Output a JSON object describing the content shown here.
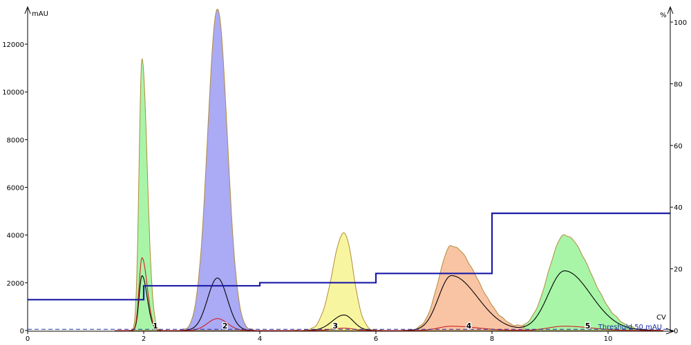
{
  "chart_data": {
    "type": "area",
    "xlabel": "CV",
    "ylabel_left": "mAU",
    "ylabel_right": "%",
    "xlim": [
      0,
      11.07
    ],
    "ylim_left": [
      0,
      13600
    ],
    "ylim_right": [
      0,
      100
    ],
    "x_ticks": [
      "0",
      "2",
      "4",
      "6",
      "8",
      "10"
    ],
    "y_ticks_left": [
      "0",
      "2000",
      "4000",
      "6000",
      "8000",
      "10000",
      "12000"
    ],
    "y_ticks_right": [
      "0",
      "20",
      "40",
      "60",
      "80",
      "100"
    ],
    "grid": false,
    "threshold": {
      "label": "Threshold 50 mAU",
      "value": 50
    },
    "peaks": [
      {
        "center": 1.97,
        "sigma_left": 0.05,
        "sigma_right": 0.09,
        "uv": 11400,
        "black": 2300,
        "red": 3050
      },
      {
        "center": 3.27,
        "sigma_left": 0.17,
        "sigma_right": 0.17,
        "uv": 13500,
        "black": 2200,
        "red": 500
      },
      {
        "center": 5.45,
        "sigma_left": 0.2,
        "sigma_right": 0.16,
        "uv": 4100,
        "black": 650,
        "red": 100
      },
      {
        "center": 7.3,
        "sigma_left": 0.22,
        "sigma_right": 0.45,
        "uv": 3550,
        "black": 2300,
        "red": 180
      },
      {
        "center": 9.25,
        "sigma_left": 0.28,
        "sigma_right": 0.45,
        "uv": 4000,
        "black": 2500,
        "red": 180
      }
    ],
    "fractions": [
      {
        "label": "1",
        "from": 1.75,
        "to": 2.4,
        "color": "#a8f5a8",
        "label_x": 2.2
      },
      {
        "label": "2",
        "from": 2.55,
        "to": 4.05,
        "color": "#aaaaf5",
        "label_x": 3.4
      },
      {
        "label": "3",
        "from": 4.55,
        "to": 6.2,
        "color": "#f8f5a0",
        "label_x": 5.3
      },
      {
        "label": "4",
        "from": 6.45,
        "to": 8.55,
        "color": "#f8c4a4",
        "label_x": 7.6
      },
      {
        "label": "5",
        "from": 8.55,
        "to": 10.9,
        "color": "#a8f5a8",
        "label_x": 9.65
      }
    ],
    "gradient_percent": [
      [
        0,
        10
      ],
      [
        2,
        10
      ],
      [
        2,
        14.5
      ],
      [
        4,
        14.5
      ],
      [
        4,
        15.5
      ],
      [
        6,
        15.5
      ],
      [
        6,
        18.5
      ],
      [
        8,
        18.5
      ],
      [
        8,
        38
      ],
      [
        11.07,
        38
      ]
    ],
    "colors": {
      "uv_outline": "#b08a3a",
      "black_trace": "#000000",
      "red_trace": "#d02020",
      "gradient": "#1a1aa8",
      "threshold": "#1a2ea0"
    }
  }
}
